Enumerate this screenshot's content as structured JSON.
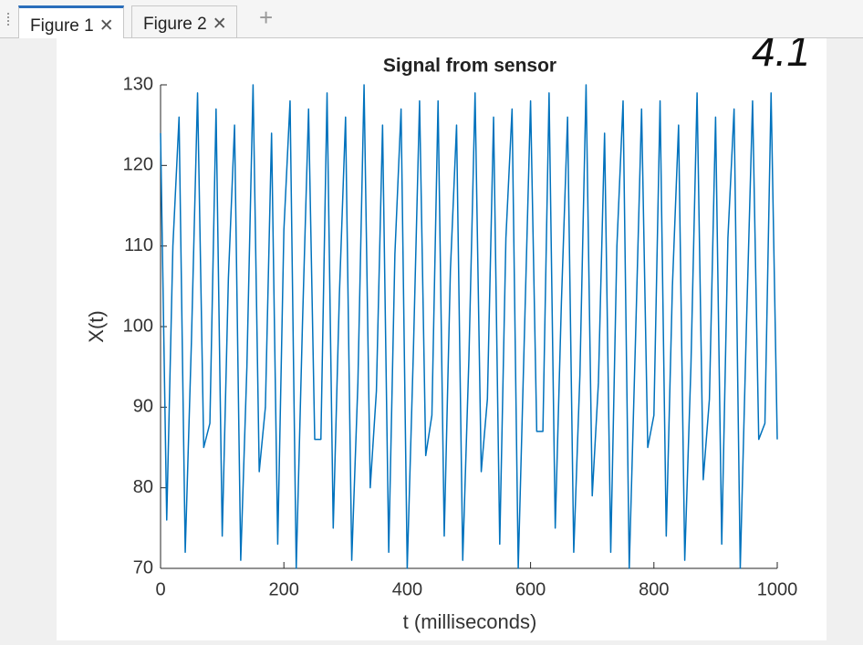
{
  "tabs": [
    {
      "label": "Figure 1"
    },
    {
      "label": "Figure 2"
    }
  ],
  "chart_data": {
    "type": "line",
    "title": "Signal from sensor",
    "xlabel": "t (milliseconds)",
    "ylabel": "X(t)",
    "annotation": "4.1",
    "x": [
      0,
      10,
      20,
      30,
      40,
      50,
      60,
      70,
      80,
      90,
      100,
      110,
      120,
      130,
      140,
      150,
      160,
      170,
      180,
      190,
      200,
      210,
      220,
      230,
      240,
      250,
      260,
      270,
      280,
      290,
      300,
      310,
      320,
      330,
      340,
      350,
      360,
      370,
      380,
      390,
      400,
      410,
      420,
      430,
      440,
      450,
      460,
      470,
      480,
      490,
      500,
      510,
      520,
      530,
      540,
      550,
      560,
      570,
      580,
      590,
      600,
      610,
      620,
      630,
      640,
      650,
      660,
      670,
      680,
      690,
      700,
      710,
      720,
      730,
      740,
      750,
      760,
      770,
      780,
      790,
      800,
      810,
      820,
      830,
      840,
      850,
      860,
      870,
      880,
      890,
      900,
      910,
      920,
      930,
      940,
      950,
      960,
      970,
      980,
      990,
      1000
    ],
    "values": [
      124,
      76,
      110,
      126,
      72,
      98,
      129,
      85,
      88,
      127,
      74,
      106,
      125,
      71,
      95,
      130,
      82,
      90,
      124,
      73,
      112,
      128,
      70,
      100,
      127,
      86,
      86,
      129,
      75,
      104,
      126,
      71,
      93,
      130,
      80,
      92,
      125,
      72,
      109,
      127,
      70,
      97,
      128,
      84,
      89,
      128,
      74,
      107,
      125,
      71,
      96,
      129,
      82,
      91,
      126,
      73,
      111,
      127,
      70,
      99,
      128,
      87,
      87,
      129,
      75,
      103,
      126,
      72,
      94,
      130,
      79,
      93,
      124,
      72,
      110,
      128,
      70,
      98,
      127,
      85,
      89,
      128,
      74,
      105,
      125,
      71,
      95,
      129,
      81,
      91,
      126,
      73,
      111,
      127,
      70,
      100,
      128,
      86,
      88,
      129,
      86
    ],
    "color": "#0072bd",
    "xlim": [
      0,
      1000
    ],
    "xticks": [
      0,
      200,
      400,
      600,
      800,
      1000
    ],
    "ylim": [
      70,
      130
    ],
    "yticks": [
      70,
      80,
      90,
      100,
      110,
      120,
      130
    ]
  }
}
